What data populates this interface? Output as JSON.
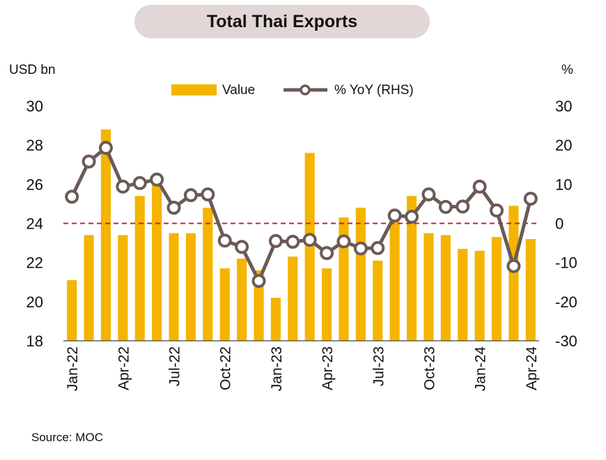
{
  "source": "Source:  MOC",
  "chart_data": {
    "type": "bar",
    "title": "Total Thai Exports",
    "left_unit": "USD bn",
    "right_unit": "%",
    "ylim": [
      18,
      30
    ],
    "yticks": [
      18,
      20,
      22,
      24,
      26,
      28,
      30
    ],
    "y2lim": [
      -30,
      30
    ],
    "y2ticks": [
      -30,
      -20,
      -10,
      0,
      10,
      20,
      30
    ],
    "x_tick_labels": [
      "Jan-22",
      "Apr-22",
      "Jul-22",
      "Oct-22",
      "Jan-23",
      "Apr-23",
      "Jul-23",
      "Oct-23",
      "Jan-24",
      "Apr-24"
    ],
    "x_tick_every": 3,
    "categories": [
      "Jan-22",
      "Feb-22",
      "Mar-22",
      "Apr-22",
      "May-22",
      "Jun-22",
      "Jul-22",
      "Aug-22",
      "Sep-22",
      "Oct-22",
      "Nov-22",
      "Dec-22",
      "Jan-23",
      "Feb-23",
      "Mar-23",
      "Apr-23",
      "May-23",
      "Jun-23",
      "Jul-23",
      "Aug-23",
      "Sep-23",
      "Oct-23",
      "Nov-23",
      "Dec-23",
      "Jan-24",
      "Feb-24",
      "Mar-24",
      "Apr-24"
    ],
    "reference_line": {
      "axis": "right",
      "value": 0,
      "color": "#c0282d",
      "style": "dashed"
    },
    "series": [
      {
        "name": "Value",
        "type": "bar",
        "axis": "left",
        "color": "#f4b400",
        "values": [
          21.1,
          23.4,
          28.8,
          23.4,
          25.4,
          26.1,
          23.5,
          23.5,
          24.8,
          21.7,
          22.2,
          21.6,
          20.2,
          22.3,
          27.6,
          21.7,
          24.3,
          24.8,
          22.1,
          24.1,
          25.4,
          23.5,
          23.4,
          22.7,
          22.6,
          23.3,
          24.9,
          23.2
        ]
      },
      {
        "name": "% YoY (RHS)",
        "type": "line",
        "axis": "right",
        "color": "#6b5a57",
        "marker": "circle",
        "values": [
          6.8,
          15.8,
          19.3,
          9.4,
          10.3,
          11.2,
          4.0,
          7.2,
          7.4,
          -4.4,
          -6.0,
          -14.7,
          -4.5,
          -4.7,
          -4.2,
          -7.6,
          -4.6,
          -6.4,
          -6.3,
          2.0,
          1.7,
          7.4,
          4.2,
          4.3,
          9.4,
          3.3,
          -10.9,
          6.3
        ]
      }
    ],
    "legend": {
      "position": "top-center"
    },
    "grid": false
  }
}
